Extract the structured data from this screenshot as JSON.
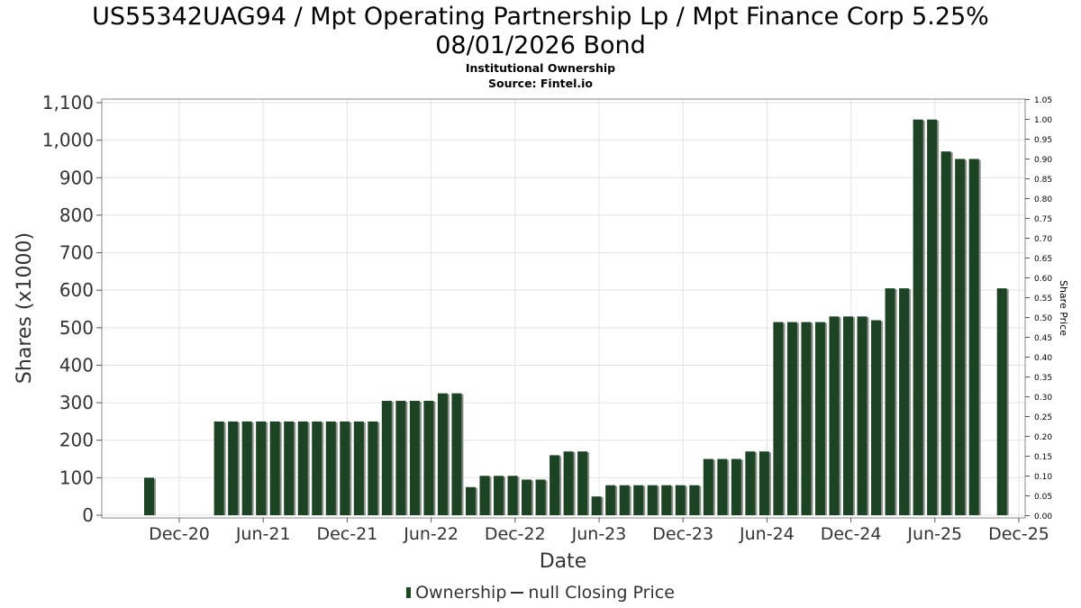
{
  "title": {
    "line1": "US55342UAG94 / Mpt Operating Partnership Lp / Mpt Finance Corp 5.25%",
    "line2": "08/01/2026 Bond",
    "subtitle1": "Institutional Ownership",
    "subtitle2": "Source: Fintel.io"
  },
  "legend": {
    "ownership_label": "Ownership",
    "price_label": "null Closing Price"
  },
  "colors": {
    "bar": "#1c4424",
    "bar_shadow": "#8a8f88",
    "grid": "#e4e4e4",
    "axis": "#888888"
  },
  "chart_data": {
    "type": "bar",
    "xlabel": "Date",
    "ylabel": "Shares (x1000)",
    "y2label": "Share Price",
    "ylim": [
      0,
      1100
    ],
    "y2lim": [
      0,
      1.05
    ],
    "yticks": [
      "0",
      "100",
      "200",
      "300",
      "400",
      "500",
      "600",
      "700",
      "800",
      "900",
      "1,000",
      "1,100"
    ],
    "y2ticks": [
      "0.00",
      "0.05",
      "0.10",
      "0.15",
      "0.20",
      "0.25",
      "0.30",
      "0.35",
      "0.40",
      "0.45",
      "0.50",
      "0.55",
      "0.60",
      "0.65",
      "0.70",
      "0.75",
      "0.80",
      "0.85",
      "0.90",
      "0.95",
      "1.00",
      "1.05"
    ],
    "xticks": [
      "Dec-20",
      "Jun-21",
      "Dec-21",
      "Jun-22",
      "Dec-22",
      "Jun-23",
      "Dec-23",
      "Jun-24",
      "Dec-24",
      "Jun-25",
      "Dec-25"
    ],
    "grid": true,
    "legend_position": "bottom",
    "series": [
      {
        "name": "Ownership",
        "values": [
          100,
          0,
          0,
          0,
          0,
          250,
          250,
          250,
          250,
          250,
          250,
          250,
          250,
          250,
          250,
          250,
          250,
          305,
          305,
          305,
          305,
          325,
          325,
          75,
          105,
          105,
          105,
          95,
          95,
          160,
          170,
          170,
          50,
          80,
          80,
          80,
          80,
          80,
          80,
          80,
          150,
          150,
          150,
          170,
          170,
          515,
          515,
          515,
          515,
          530,
          530,
          530,
          520,
          605,
          605,
          1055,
          1055,
          970,
          950,
          950,
          0,
          605
        ]
      }
    ]
  }
}
